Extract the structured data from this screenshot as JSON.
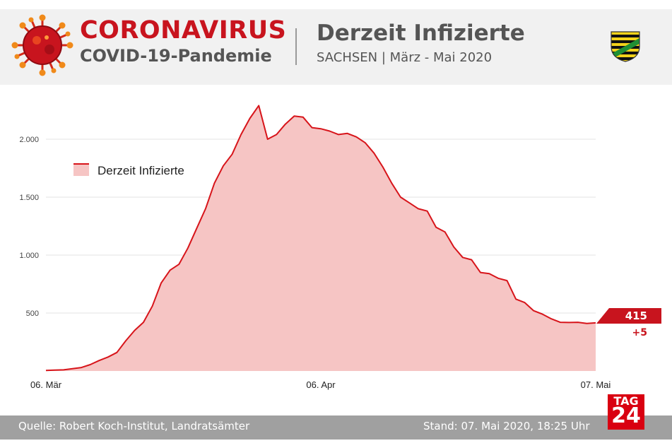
{
  "header": {
    "title_main": "CORONAVIRUS",
    "title_sub": "COVID-19-Pandemie",
    "chart_title": "Derzeit Infizierte",
    "chart_subtitle": "SACHSEN | März - Mai 2020"
  },
  "footer": {
    "source": "Quelle: Robert Koch-Institut, Landratsämter",
    "date": "Stand: 07. Mai 2020, 18:25 Uhr"
  },
  "logo": {
    "tag": "TAG",
    "number": "24"
  },
  "colors": {
    "accent": "#c8141e",
    "fill": "#f6c5c4",
    "line": "#d7141a",
    "logo_red": "#d90011"
  },
  "chart_data": {
    "type": "area",
    "title": "Derzeit Infizierte",
    "legend": [
      "Derzeit Infizierte"
    ],
    "legend_position": "top-left",
    "ylim": [
      0,
      2500
    ],
    "yticks": [
      500,
      1000,
      1500,
      2000
    ],
    "ytick_labels": [
      "500",
      "1.000",
      "1.500",
      "2.000"
    ],
    "xticks": [
      {
        "day": 0,
        "label": "06. Mär"
      },
      {
        "day": 31,
        "label": "06. Apr"
      },
      {
        "day": 62,
        "label": "07. Mai"
      }
    ],
    "grid": true,
    "series": [
      {
        "name": "Derzeit Infizierte",
        "days": [
          0,
          1,
          2,
          3,
          4,
          5,
          6,
          7,
          8,
          9,
          10,
          11,
          12,
          13,
          14,
          15,
          16,
          17,
          18,
          19,
          20,
          21,
          22,
          23,
          24,
          25,
          26,
          27,
          28,
          29,
          30,
          31,
          32,
          33,
          34,
          35,
          36,
          37,
          38,
          39,
          40,
          41,
          42,
          43,
          44,
          45,
          46,
          47,
          48,
          49,
          50,
          51,
          52,
          53,
          54,
          55,
          56,
          57,
          58,
          59,
          60,
          61,
          62
        ],
        "values": [
          5,
          8,
          10,
          20,
          30,
          55,
          90,
          120,
          160,
          260,
          350,
          420,
          560,
          760,
          870,
          920,
          1060,
          1230,
          1400,
          1620,
          1770,
          1870,
          2040,
          2180,
          2290,
          2000,
          2040,
          2130,
          2200,
          2190,
          2100,
          2090,
          2070,
          2040,
          2050,
          2020,
          1970,
          1880,
          1760,
          1620,
          1500,
          1450,
          1400,
          1380,
          1240,
          1200,
          1070,
          980,
          960,
          850,
          840,
          800,
          780,
          620,
          590,
          520,
          490,
          450,
          420,
          418,
          420,
          410,
          415
        ]
      }
    ],
    "latest_value": "415",
    "latest_change": "+5"
  }
}
